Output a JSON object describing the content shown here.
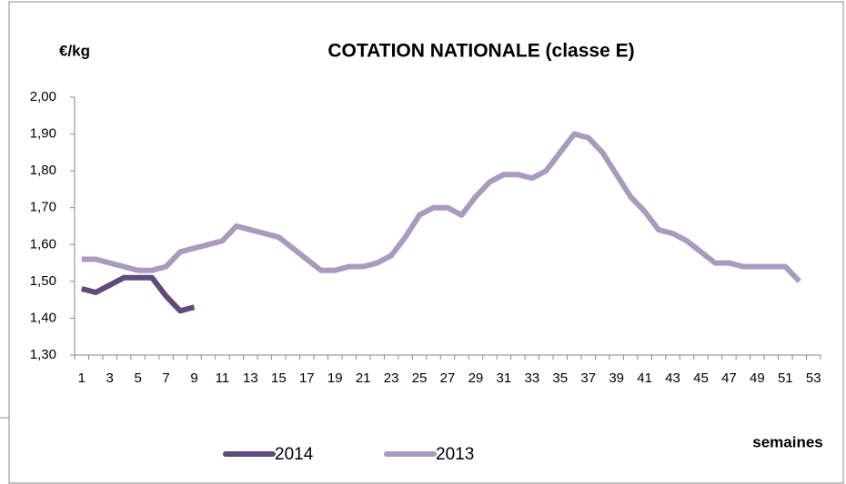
{
  "chart_data": {
    "type": "line",
    "title": "COTATION NATIONALE (classe E)",
    "y_label": "€/kg",
    "x_label": "semaines",
    "categories": [
      "1",
      null,
      "3",
      null,
      "5",
      null,
      "7",
      null,
      "9",
      null,
      "11",
      null,
      "13",
      null,
      "15",
      null,
      "17",
      null,
      "19",
      null,
      "21",
      null,
      "23",
      null,
      "25",
      null,
      "27",
      null,
      "29",
      null,
      "31",
      null,
      "33",
      null,
      "35",
      null,
      "37",
      null,
      "39",
      null,
      "41",
      null,
      "43",
      null,
      "45",
      null,
      "47",
      null,
      "49",
      null,
      "51",
      null,
      "53"
    ],
    "series": [
      {
        "name": "2014",
        "color": "#604a7b",
        "values": [
          1.48,
          1.47,
          1.49,
          1.51,
          1.51,
          1.51,
          1.46,
          1.42,
          1.43,
          null,
          null,
          null,
          null,
          null,
          null,
          null,
          null,
          null,
          null,
          null,
          null,
          null,
          null,
          null,
          null,
          null,
          null,
          null,
          null,
          null,
          null,
          null,
          null,
          null,
          null,
          null,
          null,
          null,
          null,
          null,
          null,
          null,
          null,
          null,
          null,
          null,
          null,
          null,
          null,
          null,
          null,
          null,
          null
        ]
      },
      {
        "name": "2013",
        "color": "#a99bbd",
        "values": [
          1.56,
          1.56,
          1.55,
          1.54,
          1.53,
          1.53,
          1.54,
          1.58,
          1.59,
          1.6,
          1.61,
          1.65,
          1.64,
          1.63,
          1.62,
          1.59,
          1.56,
          1.53,
          1.53,
          1.54,
          1.54,
          1.55,
          1.57,
          1.62,
          1.68,
          1.7,
          1.7,
          1.68,
          1.73,
          1.77,
          1.79,
          1.79,
          1.78,
          1.8,
          1.85,
          1.9,
          1.89,
          1.85,
          1.79,
          1.73,
          1.69,
          1.64,
          1.63,
          1.61,
          1.58,
          1.55,
          1.55,
          1.54,
          1.54,
          1.54,
          1.54,
          1.5,
          null
        ]
      }
    ],
    "ylim": [
      1.3,
      2.0
    ],
    "yticks": [
      {
        "value": 1.3,
        "label": "1,30"
      },
      {
        "value": 1.4,
        "label": "1,40"
      },
      {
        "value": 1.5,
        "label": "1,50"
      },
      {
        "value": 1.6,
        "label": "1,60"
      },
      {
        "value": 1.7,
        "label": "1,70"
      },
      {
        "value": 1.8,
        "label": "1,80"
      },
      {
        "value": 1.9,
        "label": "1,90"
      },
      {
        "value": 2.0,
        "label": "2,00"
      }
    ],
    "grid": false,
    "legend": "bottom"
  }
}
